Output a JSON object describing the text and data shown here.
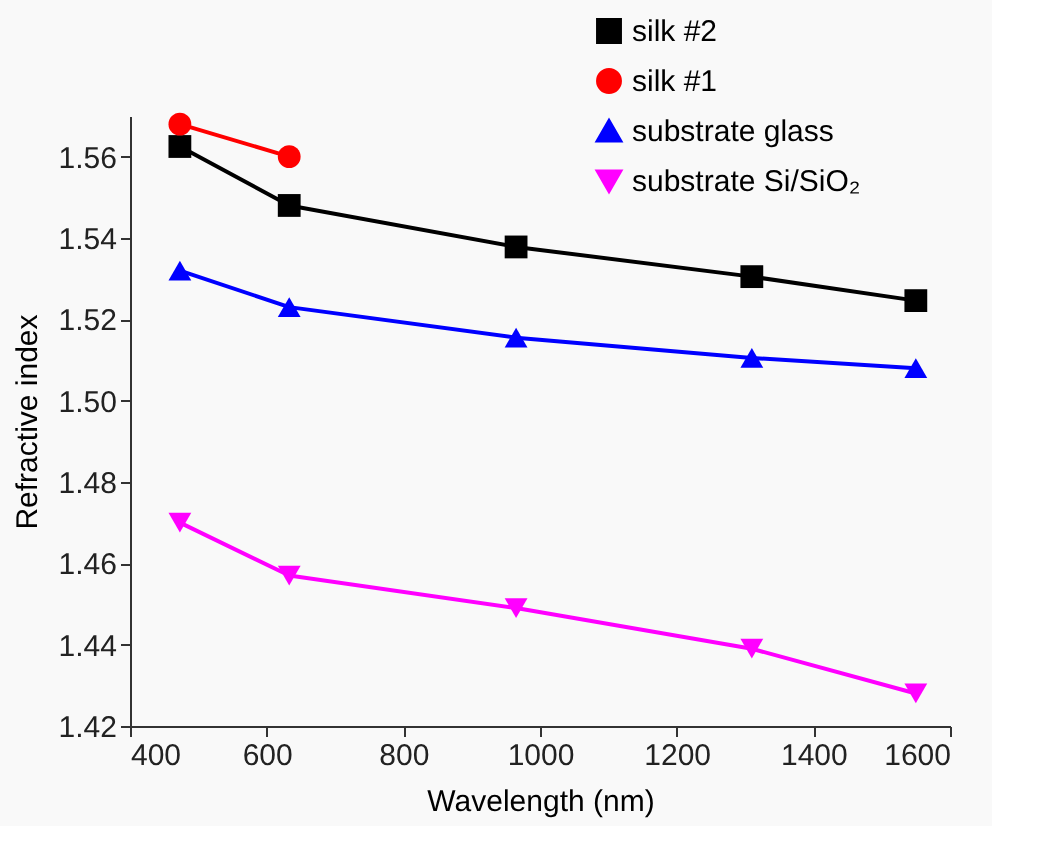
{
  "chart_data": {
    "type": "line",
    "xlabel": "Wavelength (nm)",
    "ylabel": "Refractive index",
    "xlim": [
      400,
      1600
    ],
    "xticks": [
      400,
      600,
      800,
      1000,
      1200,
      1400,
      1600
    ],
    "ylim": [
      1.42,
      1.57
    ],
    "yticks": [
      1.42,
      1.44,
      1.46,
      1.48,
      {
        "value": 1.5,
        "label": "1.50"
      },
      1.52,
      1.54,
      1.56
    ],
    "grid": false,
    "legend": "top right",
    "series": [
      {
        "name": "silk #2",
        "color": "#000000",
        "marker": "square",
        "x": [
          473,
          633,
          965,
          1310,
          1550
        ],
        "values": [
          1.5625,
          1.548,
          1.5378,
          1.5305,
          1.5246
        ]
      },
      {
        "name": "silk #1",
        "color": "#ff0000",
        "marker": "circle",
        "x": [
          473,
          633
        ],
        "values": [
          1.568,
          1.56
        ]
      },
      {
        "name": "substrate glass",
        "color": "#0000ff",
        "marker": "triangle",
        "x": [
          473,
          633,
          965,
          1310,
          1550
        ],
        "values": [
          1.532,
          1.523,
          1.5155,
          1.5105,
          1.508
        ]
      },
      {
        "name": "substrate Si/SiO₂",
        "color": "#ff00ff",
        "marker": "triangle-down",
        "x": [
          473,
          633,
          965,
          1310,
          1550
        ],
        "values": [
          1.47,
          1.457,
          1.449,
          1.439,
          1.428
        ]
      }
    ]
  }
}
